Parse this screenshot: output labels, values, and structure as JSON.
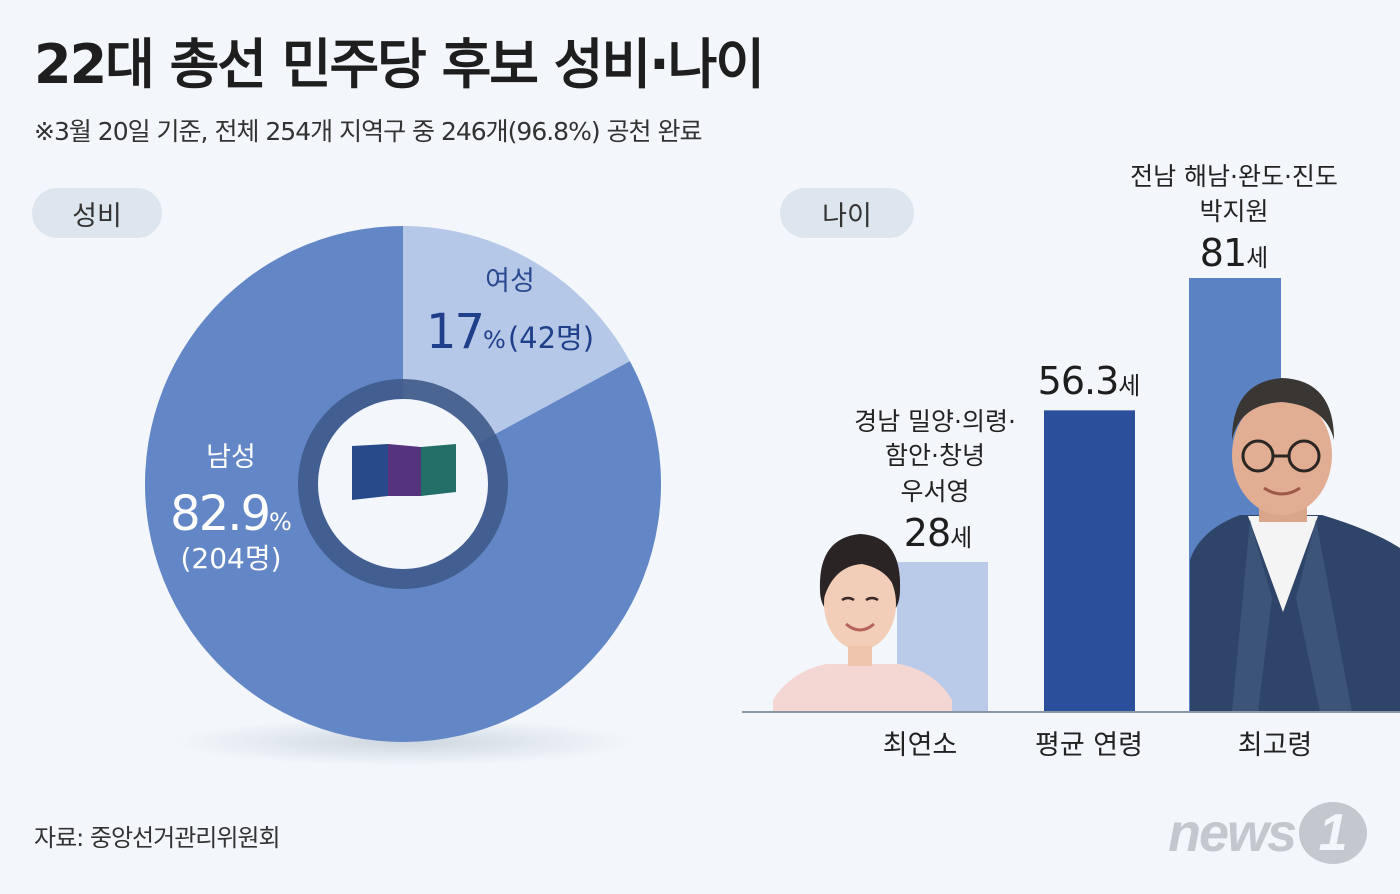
{
  "title": "22대 총선 민주당 후보 성비·나이",
  "subtitle": "※3월 20일 기준, 전체 254개 지역구 중 246개(96.8%) 공천 완료",
  "source": "자료: 중앙선거관리위원회",
  "logo": {
    "text": "news",
    "mark": "1"
  },
  "colors": {
    "male": "#6387c6",
    "female": "#b6c8e8",
    "bar_min": "#b9cbe9",
    "bar_avg": "#2c4f9b",
    "bar_max": "#5b82c3",
    "ring": "#3f5a8a",
    "label_dark": "#1f3f8a"
  },
  "chart_data": [
    {
      "type": "pie",
      "section_label": "성비",
      "slices": [
        {
          "label": "여성",
          "percent_text": "17",
          "unit": "%",
          "count_text": "(42명)",
          "value": 17.1
        },
        {
          "label": "남성",
          "percent_text": "82.9",
          "unit": "%",
          "count_text": "(204명)",
          "value": 82.9
        }
      ]
    },
    {
      "type": "bar",
      "section_label": "나이",
      "unit": "세",
      "categories": [
        "최연소",
        "평균 연령",
        "최고령"
      ],
      "values": [
        28,
        56.3,
        81
      ],
      "value_labels": [
        "28",
        "56.3",
        "81"
      ],
      "annotations": [
        [
          "경남 밀양·의령·",
          "함안·창녕",
          "우서영"
        ],
        [],
        [
          "전남 해남·완도·진도",
          "박지원"
        ]
      ]
    }
  ]
}
